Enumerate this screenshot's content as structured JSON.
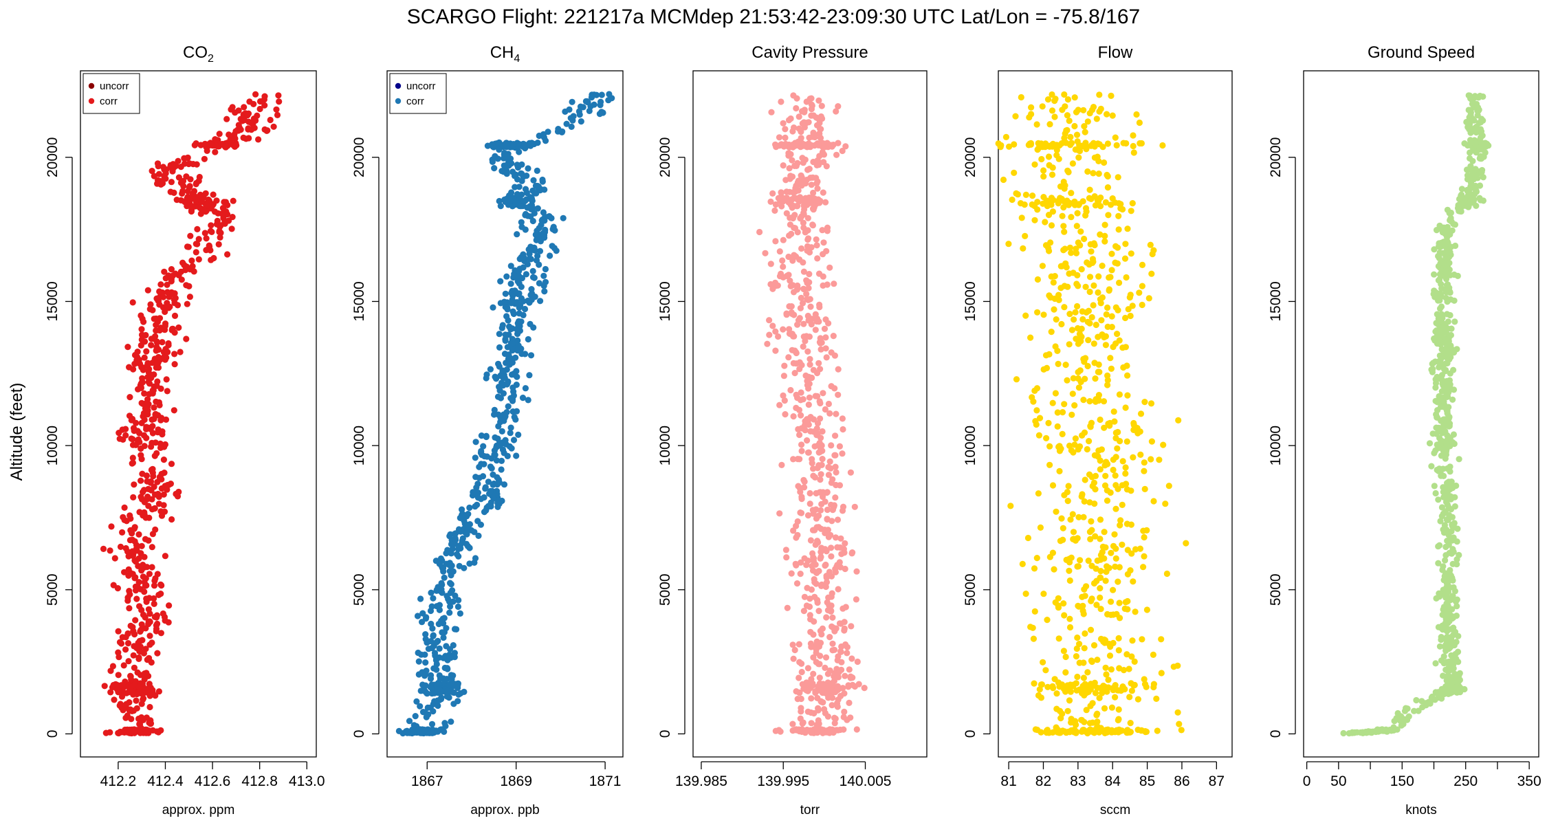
{
  "chart_data": {
    "type": "scatter",
    "title": "SCARGO Flight: 221217a  MCMdep  21:53:42-23:09:30 UTC  Lat/Lon = -75.8/167",
    "ylabel": "Altitude (feet)",
    "ylim": [
      -800,
      23000
    ],
    "y_ticks": [
      0,
      5000,
      10000,
      15000,
      20000
    ],
    "y_tick_labels": [
      "0",
      "5000",
      "10000",
      "15000",
      "20000"
    ],
    "panels": [
      {
        "key": "co2",
        "title_main": "CO",
        "title_sub": "2",
        "xlabel": "approx. ppm",
        "xlim": [
          412.04,
          413.04
        ],
        "x_ticks": [
          412.2,
          412.4,
          412.6,
          412.8,
          413.0
        ],
        "x_tick_labels": [
          "412.2",
          "412.4",
          "412.6",
          "412.8",
          "413.0"
        ],
        "legend": [
          {
            "label": "uncorr",
            "color": "#8b0000"
          },
          {
            "label": "corr",
            "color": "#e41a1c"
          }
        ],
        "series": [
          {
            "name": "corr",
            "color": "#e41a1c",
            "spread": 0.05,
            "profile": [
              [
                0,
                412.27
              ],
              [
                1500,
                412.27
              ],
              [
                2000,
                412.25
              ],
              [
                3000,
                412.28
              ],
              [
                4000,
                412.32
              ],
              [
                5000,
                412.3
              ],
              [
                6000,
                412.28
              ],
              [
                7000,
                412.25
              ],
              [
                8000,
                412.35
              ],
              [
                9000,
                412.34
              ],
              [
                10000,
                412.3
              ],
              [
                11000,
                412.32
              ],
              [
                12000,
                412.33
              ],
              [
                13000,
                412.35
              ],
              [
                14000,
                412.37
              ],
              [
                15000,
                412.4
              ],
              [
                16000,
                412.45
              ],
              [
                17000,
                412.58
              ],
              [
                17800,
                412.65
              ],
              [
                18500,
                412.55
              ],
              [
                19000,
                412.48
              ],
              [
                19500,
                412.4
              ],
              [
                20000,
                412.5
              ],
              [
                20400,
                412.62
              ],
              [
                21000,
                412.78
              ],
              [
                21500,
                412.75
              ],
              [
                22200,
                412.82
              ]
            ]
          }
        ]
      },
      {
        "key": "ch4",
        "title_main": "CH",
        "title_sub": "4",
        "xlabel": "approx. ppb",
        "xlim": [
          1866.1,
          1871.4
        ],
        "x_ticks": [
          1867,
          1869,
          1871
        ],
        "x_tick_labels": [
          "1867",
          "1869",
          "1871"
        ],
        "legend": [
          {
            "label": "uncorr",
            "color": "#00008b"
          },
          {
            "label": "corr",
            "color": "#1f78b4"
          }
        ],
        "series": [
          {
            "name": "corr",
            "color": "#1f78b4",
            "spread": 0.22,
            "profile": [
              [
                0,
                1866.9
              ],
              [
                1500,
                1867.3
              ],
              [
                3000,
                1867.2
              ],
              [
                5000,
                1867.4
              ],
              [
                7000,
                1867.8
              ],
              [
                8000,
                1868.3
              ],
              [
                9000,
                1868.5
              ],
              [
                10000,
                1868.6
              ],
              [
                12000,
                1868.8
              ],
              [
                14000,
                1869.0
              ],
              [
                16000,
                1869.2
              ],
              [
                17000,
                1869.5
              ],
              [
                18000,
                1869.6
              ],
              [
                18400,
                1868.9
              ],
              [
                19000,
                1869.4
              ],
              [
                19600,
                1868.9
              ],
              [
                20000,
                1868.6
              ],
              [
                20400,
                1868.8
              ],
              [
                21000,
                1870.0
              ],
              [
                21500,
                1870.4
              ],
              [
                22200,
                1870.9
              ]
            ]
          }
        ]
      },
      {
        "key": "pressure",
        "title_main": "Cavity Pressure",
        "title_sub": "",
        "xlabel": "torr",
        "xlim": [
          139.984,
          140.0125
        ],
        "x_ticks": [
          139.985,
          139.995,
          140.005
        ],
        "x_tick_labels": [
          "139.985",
          "139.995",
          "140.005"
        ],
        "legend": [],
        "series": [
          {
            "name": "pressure",
            "color": "#fb9a99",
            "spread": 0.0018,
            "profile": [
              [
                0,
                139.999
              ],
              [
                1500,
                140.0
              ],
              [
                5000,
                140.0
              ],
              [
                10000,
                139.999
              ],
              [
                15000,
                139.997
              ],
              [
                18000,
                139.997
              ],
              [
                20000,
                139.998
              ],
              [
                22200,
                139.998
              ]
            ]
          }
        ]
      },
      {
        "key": "flow",
        "title_main": "Flow",
        "title_sub": "",
        "xlabel": "sccm",
        "xlim": [
          80.7,
          87.45
        ],
        "x_ticks": [
          81,
          82,
          83,
          84,
          85,
          86,
          87
        ],
        "x_tick_labels": [
          "81",
          "82",
          "83",
          "84",
          "85",
          "86",
          "87"
        ],
        "legend": [],
        "series": [
          {
            "name": "flow",
            "color": "#ffd700",
            "spread": 0.9,
            "profile": [
              [
                0,
                83.5
              ],
              [
                1500,
                83.5
              ],
              [
                5000,
                83.6
              ],
              [
                10000,
                83.5
              ],
              [
                15000,
                83.2
              ],
              [
                18000,
                83.0
              ],
              [
                20000,
                82.8
              ],
              [
                22200,
                82.9
              ]
            ]
          }
        ]
      },
      {
        "key": "speed",
        "title_main": "Ground Speed",
        "title_sub": "",
        "xlabel": "knots",
        "xlim": [
          -5,
          365
        ],
        "x_ticks": [
          0,
          50,
          100,
          150,
          200,
          250,
          300,
          350
        ],
        "x_tick_labels": [
          "0",
          "50",
          "",
          "150",
          "",
          "250",
          "",
          "350"
        ],
        "legend": [],
        "series": [
          {
            "name": "speed",
            "color": "#b2df8a",
            "spread": 8,
            "profile": [
              [
                0,
                60
              ],
              [
                100,
                120
              ],
              [
                400,
                145
              ],
              [
                900,
                165
              ],
              [
                1500,
                230
              ],
              [
                3000,
                225
              ],
              [
                5000,
                220
              ],
              [
                7000,
                225
              ],
              [
                10000,
                215
              ],
              [
                13000,
                215
              ],
              [
                16000,
                215
              ],
              [
                17500,
                218
              ],
              [
                18000,
                230
              ],
              [
                18500,
                258
              ],
              [
                20000,
                270
              ],
              [
                21000,
                265
              ],
              [
                22200,
                265
              ]
            ]
          }
        ]
      }
    ]
  }
}
